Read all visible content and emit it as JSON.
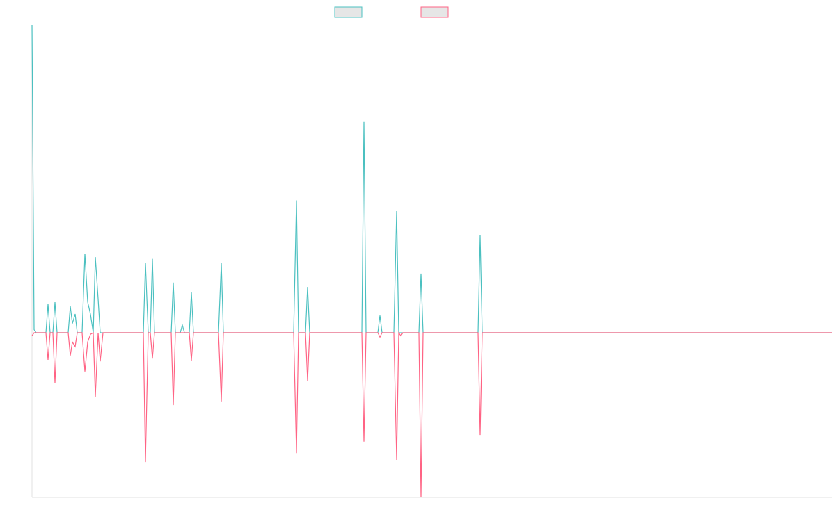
{
  "chart_data": {
    "type": "line",
    "x": [
      0,
      3,
      6,
      20,
      23,
      26,
      30,
      33,
      36,
      52,
      55,
      58,
      62,
      65,
      72,
      76,
      80,
      84,
      88,
      91,
      95,
      98,
      102,
      160,
      163,
      167,
      170,
      173,
      176,
      200,
      203,
      206,
      213,
      216,
      219,
      226,
      229,
      232,
      268,
      272,
      275,
      376,
      380,
      383,
      393,
      396,
      399,
      474,
      477,
      480,
      497,
      500,
      503,
      520,
      524,
      527,
      530,
      533,
      556,
      559,
      562,
      641,
      644,
      647,
      1149
    ],
    "xlim": [
      0,
      1149
    ],
    "ylim": [
      -5.35,
      10
    ],
    "series": [
      {
        "color": "#4bc0c0",
        "values": [
          10,
          0.1,
          0,
          0,
          0.93,
          0,
          0,
          0.99,
          0,
          0,
          0.86,
          0.3,
          0.61,
          0,
          0,
          2.57,
          1.0,
          0.6,
          0,
          2.46,
          1.1,
          0,
          0,
          0,
          2.26,
          0,
          0,
          2.4,
          0,
          0,
          1.63,
          0,
          0,
          0.25,
          0,
          0,
          1.31,
          0,
          0,
          2.26,
          0,
          0,
          4.3,
          0,
          0,
          1.49,
          0,
          0,
          6.87,
          0,
          0,
          0.56,
          0,
          0,
          3.95,
          0,
          0,
          0,
          0,
          1.92,
          0,
          0,
          3.16,
          0,
          0
        ]
      },
      {
        "color": "#ff6384",
        "values": [
          -0.1,
          0,
          0,
          0,
          -0.88,
          0,
          0,
          -1.63,
          0,
          0,
          -0.74,
          -0.3,
          -0.45,
          0,
          0,
          -1.26,
          -0.3,
          -0.05,
          0,
          -2.08,
          0,
          -0.93,
          0,
          0,
          -4.2,
          0,
          0,
          -0.84,
          0,
          0,
          -2.35,
          0,
          0,
          0,
          0,
          0,
          -0.9,
          0,
          0,
          -2.23,
          0,
          0,
          -3.91,
          0,
          0,
          -1.56,
          0,
          0,
          -3.54,
          0,
          0,
          -0.14,
          0,
          0,
          -4.13,
          0,
          -0.1,
          0,
          0,
          -5.35,
          0,
          0,
          -3.32,
          0,
          0
        ]
      }
    ]
  }
}
